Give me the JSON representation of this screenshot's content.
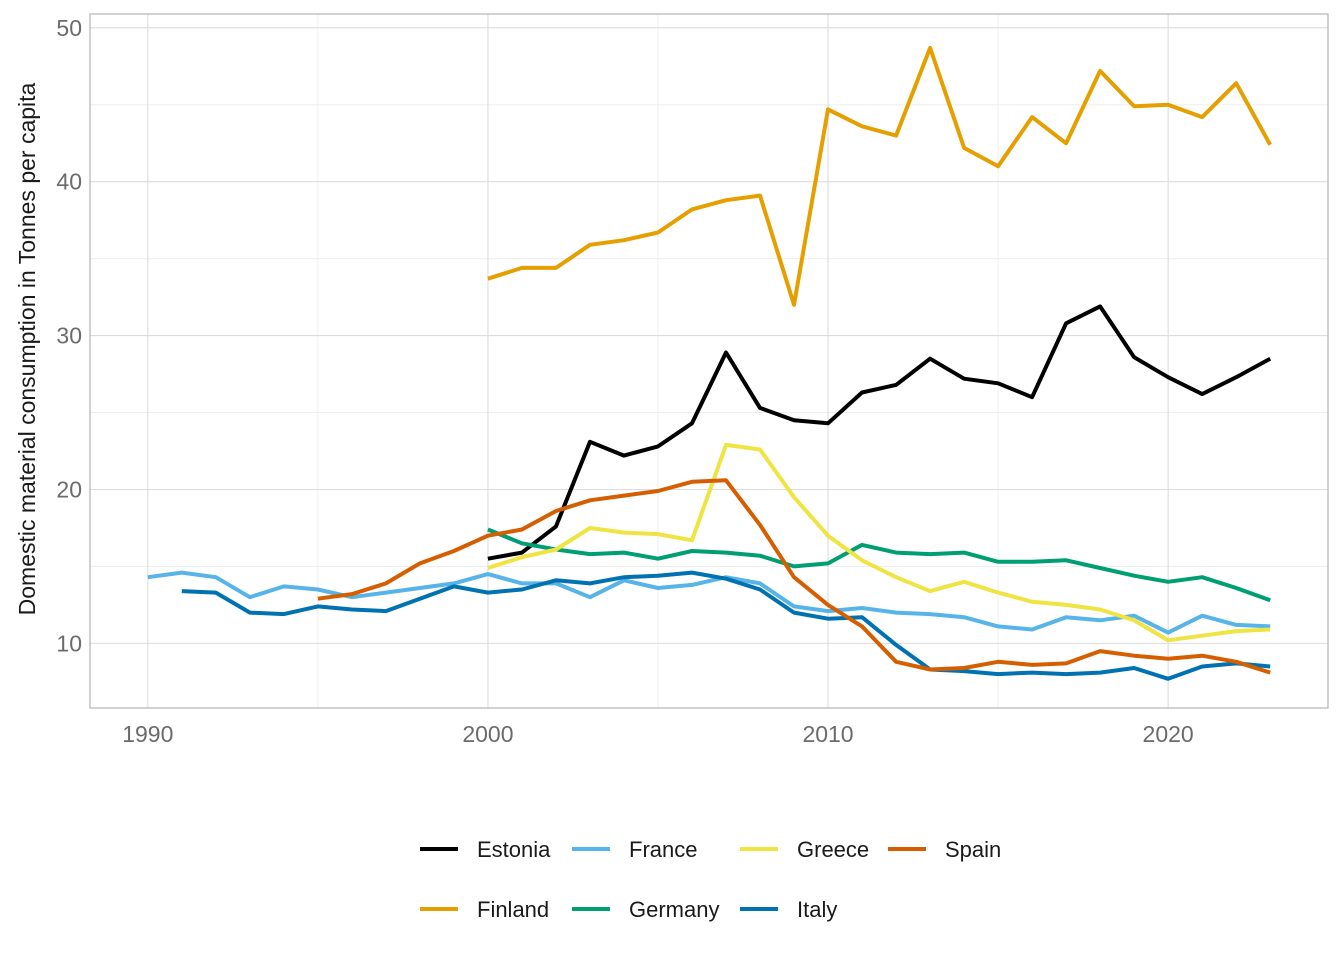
{
  "chart_data": {
    "type": "line",
    "title": "",
    "xlabel": "",
    "ylabel": "Domestic material consumption in Tonnes per capita",
    "xlim": [
      1988.3,
      2024.7
    ],
    "ylim": [
      5.8,
      50.9
    ],
    "x_ticks": [
      1990,
      2000,
      2010,
      2020
    ],
    "y_ticks": [
      10,
      20,
      30,
      40,
      50
    ],
    "grid": true,
    "legend_position": "bottom",
    "series": [
      {
        "name": "Estonia",
        "color": "#000000",
        "x": [
          2000,
          2001,
          2002,
          2003,
          2004,
          2005,
          2006,
          2007,
          2008,
          2009,
          2010,
          2011,
          2012,
          2013,
          2014,
          2015,
          2016,
          2017,
          2018,
          2019,
          2020,
          2021,
          2022,
          2023
        ],
        "y": [
          15.5,
          15.9,
          17.6,
          23.1,
          22.2,
          22.8,
          24.3,
          28.9,
          25.3,
          24.5,
          24.3,
          26.3,
          26.8,
          28.5,
          27.2,
          26.9,
          26.0,
          30.8,
          31.9,
          28.6,
          27.3,
          26.2,
          27.3,
          28.5
        ]
      },
      {
        "name": "Finland",
        "color": "#E69F00",
        "x": [
          2000,
          2001,
          2002,
          2003,
          2004,
          2005,
          2006,
          2007,
          2008,
          2009,
          2010,
          2011,
          2012,
          2013,
          2014,
          2015,
          2016,
          2017,
          2018,
          2019,
          2020,
          2021,
          2022,
          2023
        ],
        "y": [
          33.7,
          34.4,
          34.4,
          35.9,
          36.2,
          36.7,
          38.2,
          38.8,
          39.1,
          32.0,
          44.7,
          43.6,
          43.0,
          48.7,
          42.2,
          41.0,
          44.2,
          42.5,
          47.2,
          44.9,
          45.0,
          44.2,
          46.4,
          42.4
        ]
      },
      {
        "name": "France",
        "color": "#56B4E9",
        "x": [
          1990,
          1991,
          1992,
          1993,
          1994,
          1995,
          1996,
          1997,
          1998,
          1999,
          2000,
          2001,
          2002,
          2003,
          2004,
          2005,
          2006,
          2007,
          2008,
          2009,
          2010,
          2011,
          2012,
          2013,
          2014,
          2015,
          2016,
          2017,
          2018,
          2019,
          2020,
          2021,
          2022,
          2023
        ],
        "y": [
          14.3,
          14.6,
          14.3,
          13.0,
          13.7,
          13.5,
          13.0,
          13.3,
          13.6,
          13.9,
          14.5,
          13.9,
          13.9,
          13.0,
          14.1,
          13.6,
          13.8,
          14.3,
          13.9,
          12.4,
          12.1,
          12.3,
          12.0,
          11.9,
          11.7,
          11.1,
          10.9,
          11.7,
          11.5,
          11.8,
          10.7,
          11.8,
          11.2,
          11.1
        ]
      },
      {
        "name": "Germany",
        "color": "#009E73",
        "x": [
          2000,
          2001,
          2002,
          2003,
          2004,
          2005,
          2006,
          2007,
          2008,
          2009,
          2010,
          2011,
          2012,
          2013,
          2014,
          2015,
          2016,
          2017,
          2018,
          2019,
          2020,
          2021,
          2022,
          2023
        ],
        "y": [
          17.4,
          16.5,
          16.1,
          15.8,
          15.9,
          15.5,
          16.0,
          15.9,
          15.7,
          15.0,
          15.2,
          16.4,
          15.9,
          15.8,
          15.9,
          15.3,
          15.3,
          15.4,
          14.9,
          14.4,
          14.0,
          14.3,
          13.6,
          12.8
        ]
      },
      {
        "name": "Greece",
        "color": "#F0E442",
        "x": [
          2000,
          2001,
          2002,
          2003,
          2004,
          2005,
          2006,
          2007,
          2008,
          2009,
          2010,
          2011,
          2012,
          2013,
          2014,
          2015,
          2016,
          2017,
          2018,
          2019,
          2020,
          2021,
          2022,
          2023
        ],
        "y": [
          14.9,
          15.6,
          16.1,
          17.5,
          17.2,
          17.1,
          16.7,
          22.9,
          22.6,
          19.5,
          17.0,
          15.4,
          14.3,
          13.4,
          14.0,
          13.3,
          12.7,
          12.5,
          12.2,
          11.5,
          10.2,
          10.5,
          10.8,
          10.9
        ]
      },
      {
        "name": "Italy",
        "color": "#0072B2",
        "x": [
          1991,
          1992,
          1993,
          1994,
          1995,
          1996,
          1997,
          1998,
          1999,
          2000,
          2001,
          2002,
          2003,
          2004,
          2005,
          2006,
          2007,
          2008,
          2009,
          2010,
          2011,
          2012,
          2013,
          2014,
          2015,
          2016,
          2017,
          2018,
          2019,
          2020,
          2021,
          2022,
          2023
        ],
        "y": [
          13.4,
          13.3,
          12.0,
          11.9,
          12.4,
          12.2,
          12.1,
          12.9,
          13.7,
          13.3,
          13.5,
          14.1,
          13.9,
          14.3,
          14.4,
          14.6,
          14.2,
          13.5,
          12.0,
          11.6,
          11.7,
          9.9,
          8.3,
          8.2,
          8.0,
          8.1,
          8.0,
          8.1,
          8.4,
          7.7,
          8.5,
          8.7,
          8.5
        ]
      },
      {
        "name": "Spain",
        "color": "#D55E00",
        "x": [
          1995,
          1996,
          1997,
          1998,
          1999,
          2000,
          2001,
          2002,
          2003,
          2004,
          2005,
          2006,
          2007,
          2008,
          2009,
          2010,
          2011,
          2012,
          2013,
          2014,
          2015,
          2016,
          2017,
          2018,
          2019,
          2020,
          2021,
          2022,
          2023
        ],
        "y": [
          12.9,
          13.2,
          13.9,
          15.2,
          16.0,
          17.0,
          17.4,
          18.6,
          19.3,
          19.6,
          19.9,
          20.5,
          20.6,
          17.7,
          14.3,
          12.5,
          11.1,
          8.8,
          8.3,
          8.4,
          8.8,
          8.6,
          8.7,
          9.5,
          9.2,
          9.0,
          9.2,
          8.8,
          8.1
        ]
      }
    ],
    "legend_rows": [
      [
        "Estonia",
        "France",
        "Greece",
        "Spain"
      ],
      [
        "Finland",
        "Germany",
        "Italy"
      ]
    ]
  }
}
